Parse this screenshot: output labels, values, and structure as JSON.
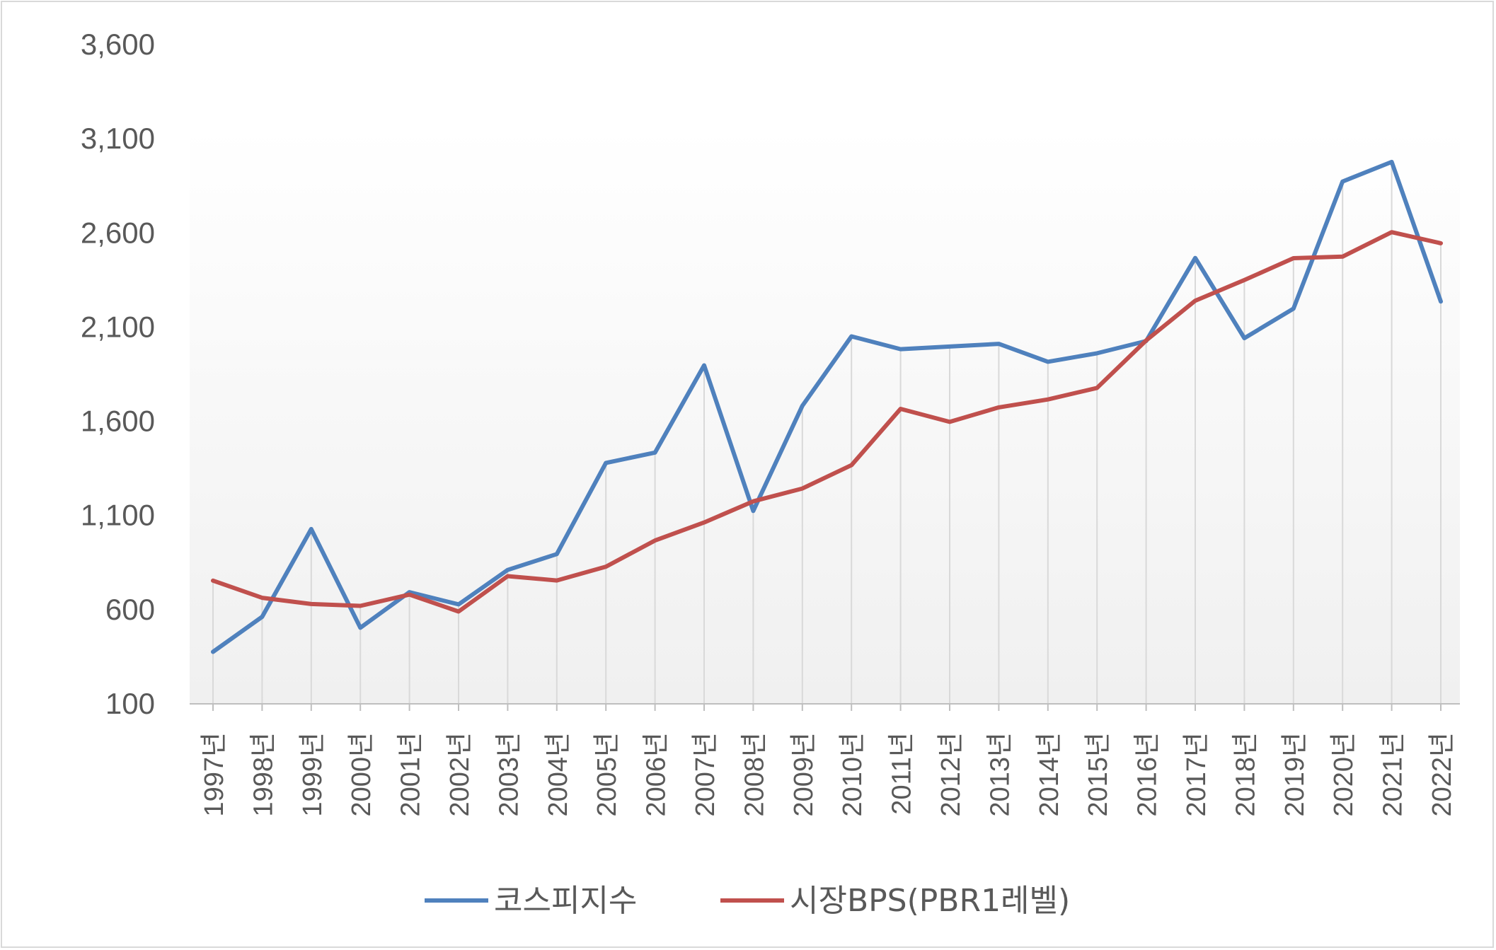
{
  "chart_data": {
    "type": "line",
    "title": "",
    "xlabel": "",
    "ylabel": "",
    "ylim": [
      100,
      3600
    ],
    "yticks": [
      "100",
      "600",
      "1,100",
      "1,600",
      "2,100",
      "2,600",
      "3,100",
      "3,600"
    ],
    "ytick_values": [
      100,
      600,
      1100,
      1600,
      2100,
      2600,
      3100,
      3600
    ],
    "categories": [
      "1997년",
      "1998년",
      "1999년",
      "2000년",
      "2001년",
      "2002년",
      "2003년",
      "2004년",
      "2005년",
      "2006년",
      "2007년",
      "2008년",
      "2009년",
      "2010년",
      "2011년",
      "2012년",
      "2013년",
      "2014년",
      "2015년",
      "2016년",
      "2017년",
      "2018년",
      "2019년",
      "2020년",
      "2021년",
      "2022년"
    ],
    "series": [
      {
        "name": "코스피지수",
        "color": "#4f81bd",
        "values": [
          376,
          562,
          1028,
          504,
          693,
          628,
          811,
          895,
          1379,
          1434,
          1897,
          1124,
          1682,
          2051,
          1983,
          1997,
          2011,
          1916,
          1961,
          2026,
          2467,
          2041,
          2198,
          2873,
          2977,
          2236
        ]
      },
      {
        "name": "시장BPS(PBR1레벨)",
        "color": "#c0504d",
        "values": [
          754,
          663,
          630,
          620,
          680,
          590,
          778,
          755,
          828,
          967,
          1063,
          1175,
          1243,
          1367,
          1666,
          1597,
          1674,
          1716,
          1777,
          2029,
          2240,
          2350,
          2466,
          2474,
          2604,
          2545
        ]
      }
    ],
    "legend_position": "bottom",
    "grid": "vertical-drop-lines"
  }
}
